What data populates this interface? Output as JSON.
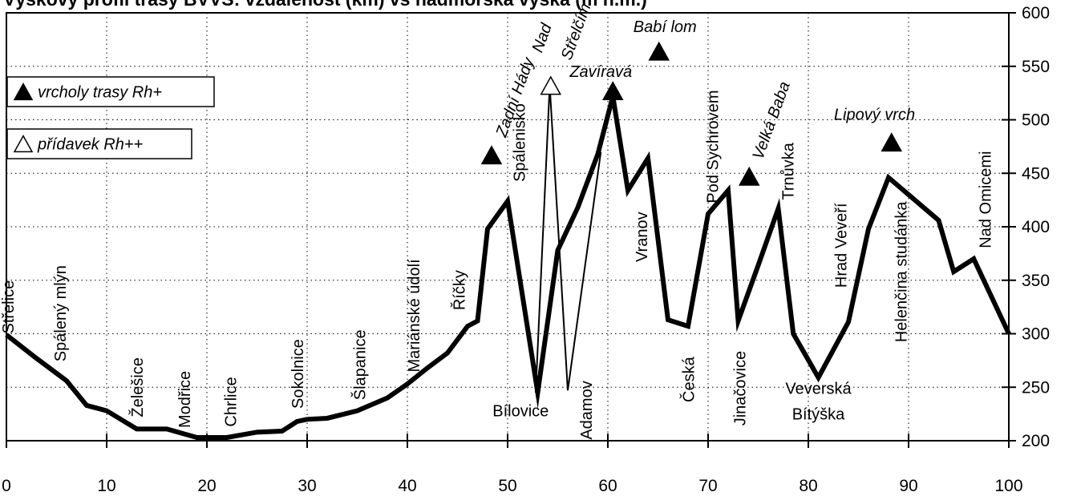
{
  "chart_data": {
    "type": "line",
    "title": "Výškový profil trasy BVVS: vzdálenost (km) vs nadmořská výška (m n.m.)",
    "xlim": [
      0,
      100
    ],
    "ylim": [
      200,
      600
    ],
    "x_ticks": [
      0,
      10,
      20,
      30,
      40,
      50,
      60,
      70,
      80,
      90,
      100
    ],
    "y_ticks": [
      200,
      250,
      300,
      350,
      400,
      450,
      500,
      550,
      600
    ],
    "y_axis_side": "right",
    "grid": "dotted",
    "series": [
      {
        "name": "",
        "color": "#000000",
        "points": [
          [
            0,
            299
          ],
          [
            3,
            277
          ],
          [
            6,
            256
          ],
          [
            8,
            233
          ],
          [
            10,
            228
          ],
          [
            13,
            211
          ],
          [
            16,
            211
          ],
          [
            19,
            203
          ],
          [
            22,
            203
          ],
          [
            25,
            208
          ],
          [
            27.5,
            209
          ],
          [
            29,
            218
          ],
          [
            30,
            220
          ],
          [
            32,
            221
          ],
          [
            35,
            228
          ],
          [
            38,
            240
          ],
          [
            40,
            253
          ],
          [
            42,
            268
          ],
          [
            44,
            282
          ],
          [
            46,
            307
          ],
          [
            47,
            312
          ],
          [
            48,
            398
          ],
          [
            50,
            424
          ],
          [
            53,
            245
          ],
          [
            55,
            378
          ],
          [
            57,
            418
          ],
          [
            59,
            468
          ],
          [
            60.5,
            522
          ],
          [
            62,
            434
          ],
          [
            64,
            464
          ],
          [
            66,
            313
          ],
          [
            68,
            307
          ],
          [
            70,
            412
          ],
          [
            72,
            434
          ],
          [
            73,
            312
          ],
          [
            75,
            364
          ],
          [
            77,
            417
          ],
          [
            78.5,
            300
          ],
          [
            81,
            259
          ],
          [
            84,
            311
          ],
          [
            86,
            398
          ],
          [
            88,
            446
          ],
          [
            90,
            430
          ],
          [
            93,
            406
          ],
          [
            94.5,
            358
          ],
          [
            96.5,
            370
          ],
          [
            100,
            300
          ]
        ]
      }
    ],
    "detour": [
      [
        52.8,
        245
      ],
      [
        54.2,
        532
      ],
      [
        56,
        247
      ],
      [
        59.3,
        470
      ]
    ],
    "places": [
      {
        "name": "Střelice",
        "x": 0.7,
        "y": 300,
        "rotated": true
      },
      {
        "name": "Spálený mlýn",
        "x": 5.9,
        "y": 274,
        "rotated": true
      },
      {
        "name": "Želešice",
        "x": 13.6,
        "y": 222,
        "rotated": true
      },
      {
        "name": "Modřice",
        "x": 18.3,
        "y": 212,
        "rotated": true
      },
      {
        "name": "Chrlice",
        "x": 22.9,
        "y": 213,
        "rotated": true
      },
      {
        "name": "Sokolnice",
        "x": 29.6,
        "y": 230,
        "rotated": true
      },
      {
        "name": "Šlapanice",
        "x": 35.8,
        "y": 238,
        "rotated": true
      },
      {
        "name": "Mariánské údolí",
        "x": 41.2,
        "y": 264,
        "rotated": true
      },
      {
        "name": "Říčky",
        "x": 45.7,
        "y": 322,
        "rotated": true
      },
      {
        "name": "Spálenisko",
        "x": 51.7,
        "y": 442,
        "rotated": true
      },
      {
        "name": "Bílovice",
        "x": 51.3,
        "y": 223,
        "rotated": false
      },
      {
        "name": "Adamov",
        "x": 58.4,
        "y": 201,
        "rotated": true
      },
      {
        "name": "Vranov",
        "x": 63.9,
        "y": 367,
        "rotated": true
      },
      {
        "name": "Česká",
        "x": 68.6,
        "y": 236,
        "rotated": true
      },
      {
        "name": "Pod Sychrovem",
        "x": 71.0,
        "y": 422,
        "rotated": true
      },
      {
        "name": "Jinačovice",
        "x": 73.7,
        "y": 214,
        "rotated": true
      },
      {
        "name": "Trnůvka",
        "x": 78.5,
        "y": 425,
        "rotated": true
      },
      {
        "name": "Veverská",
        "x": 81.0,
        "y": 244,
        "rotated": false
      },
      {
        "name": "Bítýška",
        "x": 81.0,
        "y": 220,
        "rotated": false
      },
      {
        "name": "Hrad Veveří",
        "x": 83.8,
        "y": 343,
        "rotated": true
      },
      {
        "name": "Helenčina studánka",
        "x": 89.8,
        "y": 292,
        "rotated": true
      },
      {
        "name": "Nad Omicemi",
        "x": 98.2,
        "y": 380,
        "rotated": true
      }
    ],
    "peaks": [
      {
        "name": "Zadní Hády",
        "x": 48.4,
        "y": 467,
        "filled": true,
        "label_rotated": true,
        "label_x": 49.8,
        "label_y": 483
      },
      {
        "name": "Nad",
        "x": 54.3,
        "y": 532,
        "filled": false,
        "label_rotated": true,
        "label_x": 53.4,
        "label_y": 562
      },
      {
        "name": "Střelčím",
        "x": 54.3,
        "y": 532,
        "filled": false,
        "label_rotated": true,
        "label_x": 56.3,
        "label_y": 555
      },
      {
        "name": "Babí lom",
        "x": 65.1,
        "y": 564,
        "filled": true,
        "label_rotated": false,
        "label_x": 65.7,
        "label_y": 582
      },
      {
        "name": "Zavíravá",
        "x": 60.5,
        "y": 527,
        "filled": true,
        "label_rotated": false,
        "label_x": 59.3,
        "label_y": 540
      },
      {
        "name": "Velká Baba",
        "x": 74.1,
        "y": 447,
        "filled": true,
        "label_rotated": true,
        "label_x": 75.4,
        "label_y": 462
      },
      {
        "name": "Lipový vrch",
        "x": 88.3,
        "y": 479,
        "filled": true,
        "label_rotated": false,
        "label_x": 86.6,
        "label_y": 500
      }
    ],
    "legend": [
      {
        "symbol": "filled-triangle",
        "label": "vrcholy trasy Rh+"
      },
      {
        "symbol": "open-triangle",
        "label": "přídavek Rh++"
      }
    ],
    "legend_placement": "left"
  }
}
